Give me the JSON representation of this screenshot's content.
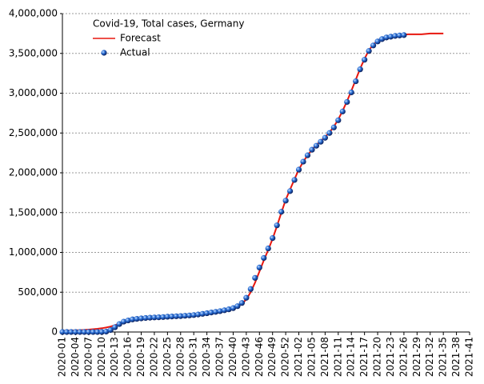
{
  "chart_data": {
    "type": "line",
    "title": "Covid-19, Total cases, Germany",
    "categories": [
      "2020-01",
      null,
      null,
      "2020-04",
      null,
      null,
      "2020-07",
      null,
      null,
      "2020-10",
      null,
      null,
      "2020-13",
      null,
      null,
      "2020-16",
      null,
      null,
      "2020-19",
      null,
      null,
      "2020-22",
      null,
      null,
      "2020-25",
      null,
      null,
      "2020-28",
      null,
      null,
      "2020-31",
      null,
      null,
      "2020-34",
      null,
      null,
      "2020-37",
      null,
      null,
      "2020-40",
      null,
      null,
      "2020-43",
      null,
      null,
      "2020-46",
      null,
      null,
      "2020-49",
      null,
      null,
      "2020-52",
      null,
      null,
      "2021-02",
      null,
      null,
      "2021-05",
      null,
      null,
      "2021-08",
      null,
      null,
      "2021-11",
      null,
      null,
      "2021-14",
      null,
      null,
      "2021-17",
      null,
      null,
      "2021-20",
      null,
      null,
      "2021-23",
      null,
      null,
      "2021-26",
      null,
      null,
      "2021-29",
      null,
      null,
      "2021-32",
      null,
      null,
      "2021-35",
      null,
      null,
      "2021-38",
      null,
      null,
      "2021-41"
    ],
    "series": [
      {
        "name": "Forecast",
        "color": "#e8170f",
        "style": "line",
        "values": [
          15000,
          17000,
          19000,
          21000,
          23000,
          26000,
          30000,
          35000,
          40000,
          47000,
          56000,
          68000,
          85000,
          105000,
          125000,
          140000,
          152000,
          161000,
          168000,
          173000,
          177000,
          181000,
          184000,
          187000,
          190000,
          193000,
          196000,
          199000,
          202000,
          206000,
          211000,
          217000,
          224000,
          232000,
          241000,
          250000,
          260000,
          271000,
          284000,
          300000,
          322000,
          355000,
          410000,
          500000,
          620000,
          760000,
          900000,
          1030000,
          1170000,
          1330000,
          1500000,
          1660000,
          1790000,
          1920000,
          2040000,
          2140000,
          2220000,
          2290000,
          2350000,
          2400000,
          2450000,
          2510000,
          2580000,
          2670000,
          2780000,
          2900000,
          3030000,
          3170000,
          3310000,
          3430000,
          3540000,
          3610000,
          3660000,
          3690000,
          3710000,
          3720000,
          3728000,
          3733000,
          3737000,
          3740000,
          3740000,
          3740000,
          3740000,
          3745000,
          3750000,
          3750000,
          3750000,
          3750000,
          null,
          null,
          null,
          null,
          null,
          null
        ]
      },
      {
        "name": "Actual",
        "color": "#2a6fd6",
        "style": "points",
        "values": [
          0,
          0,
          0,
          0,
          0,
          0,
          0,
          0,
          0,
          1000,
          5000,
          25000,
          60000,
          100000,
          130000,
          145000,
          158000,
          165000,
          171000,
          176000,
          180000,
          183000,
          185000,
          188000,
          192000,
          195000,
          198000,
          200000,
          204000,
          208000,
          213000,
          220000,
          228000,
          236000,
          245000,
          253000,
          262000,
          273000,
          285000,
          300000,
          325000,
          365000,
          430000,
          540000,
          680000,
          810000,
          930000,
          1050000,
          1180000,
          1340000,
          1510000,
          1650000,
          1770000,
          1910000,
          2040000,
          2140000,
          2220000,
          2290000,
          2340000,
          2390000,
          2440000,
          2500000,
          2570000,
          2660000,
          2770000,
          2890000,
          3010000,
          3150000,
          3300000,
          3420000,
          3530000,
          3600000,
          3650000,
          3680000,
          3700000,
          3710000,
          3720000,
          3725000,
          3730000,
          null,
          null,
          null,
          null,
          null,
          null,
          null,
          null,
          null,
          null,
          null,
          null,
          null,
          null,
          null
        ]
      }
    ],
    "ylim": [
      0,
      4000000
    ],
    "yticks": [
      0,
      {
        "value": 500000,
        "label": "500,000"
      },
      {
        "value": 1000000,
        "label": "1,000,000"
      },
      {
        "value": 1500000,
        "label": "1,500,000"
      },
      {
        "value": 2000000,
        "label": "2,000,000"
      },
      {
        "value": 2500000,
        "label": "2,500,000"
      },
      {
        "value": 3000000,
        "label": "3,000,000"
      },
      {
        "value": 3500000,
        "label": "3,500,000"
      },
      {
        "value": 4000000,
        "label": "4,000,000"
      }
    ],
    "grid": true,
    "legend": "upper-left"
  }
}
